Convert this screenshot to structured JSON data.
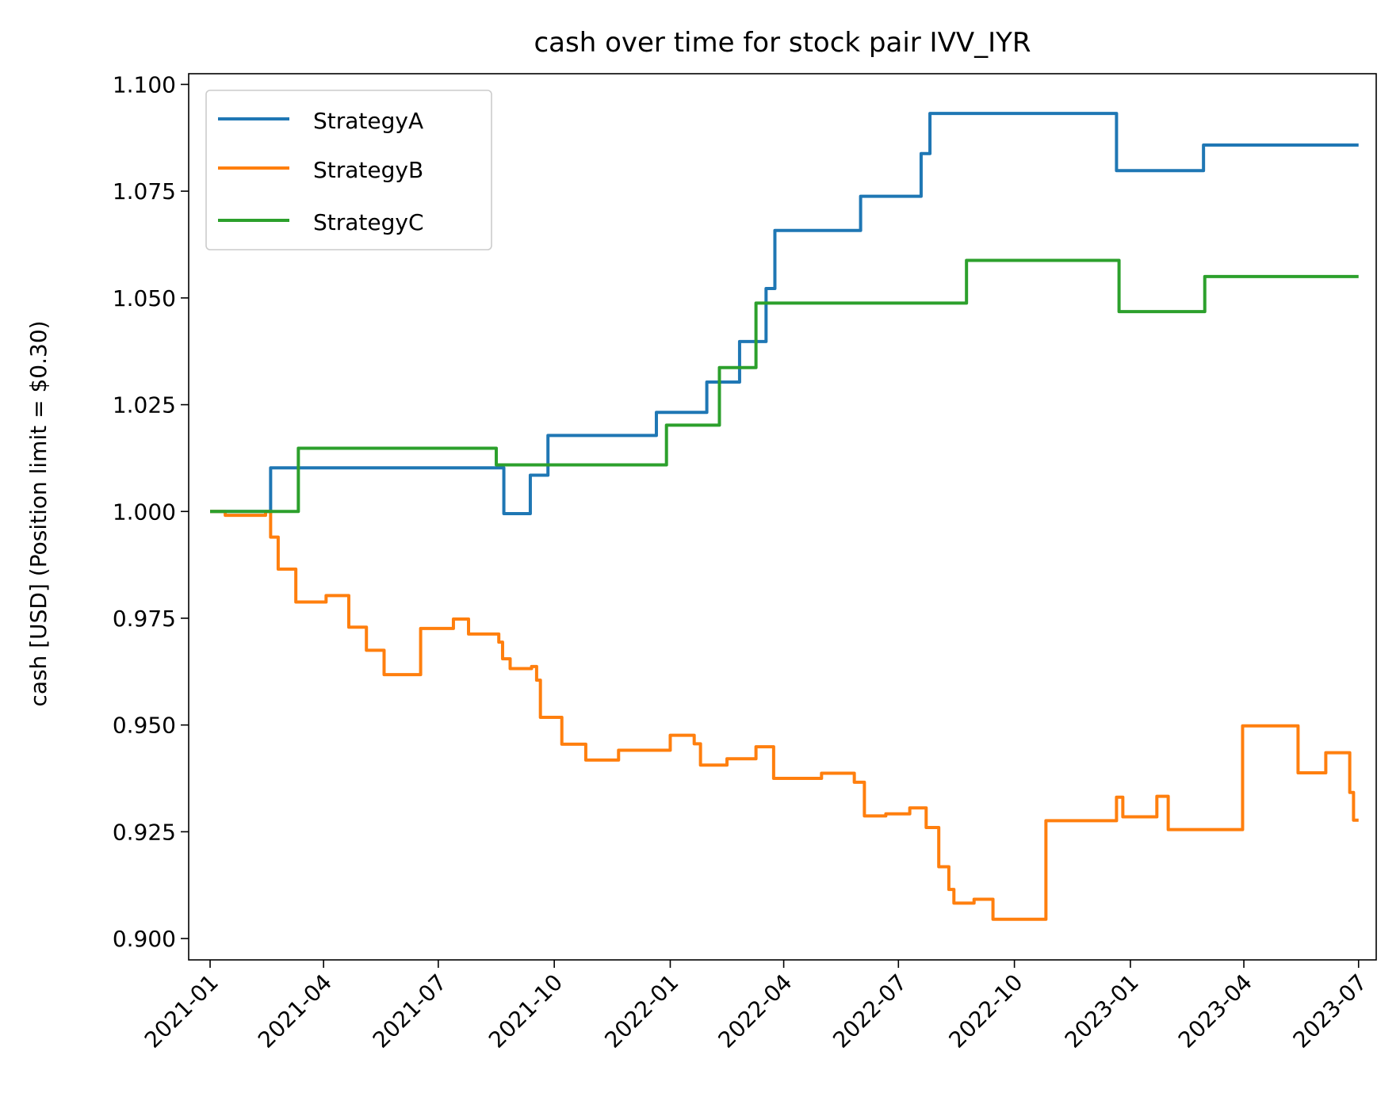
{
  "chart_data": {
    "type": "line",
    "title": "cash over time for stock pair IVV_IYR",
    "xlabel": "",
    "ylabel": "cash [USD] (Position limit = $0.30)",
    "ylim": [
      0.895,
      1.1025
    ],
    "xlim": [
      "2020-12-15",
      "2023-07-15"
    ],
    "xticks": [
      "2021-01",
      "2021-04",
      "2021-07",
      "2021-10",
      "2022-01",
      "2022-04",
      "2022-07",
      "2022-10",
      "2023-01",
      "2023-04",
      "2023-07"
    ],
    "yticks": [
      "0.900",
      "0.925",
      "0.950",
      "0.975",
      "1.000",
      "1.025",
      "1.050",
      "1.075",
      "1.100"
    ],
    "legend_position": "upper left",
    "series": [
      {
        "name": "StrategyA",
        "color": "#1f77b4",
        "points": [
          [
            "2021-01-01",
            1.0
          ],
          [
            "2021-02-18",
            1.0
          ],
          [
            "2021-02-18",
            1.0102
          ],
          [
            "2021-08-22",
            1.0102
          ],
          [
            "2021-08-22",
            0.9995
          ],
          [
            "2021-09-12",
            0.9995
          ],
          [
            "2021-09-12",
            1.0085
          ],
          [
            "2021-09-26",
            1.0085
          ],
          [
            "2021-09-26",
            1.0178
          ],
          [
            "2021-12-21",
            1.0178
          ],
          [
            "2021-12-21",
            1.0232
          ],
          [
            "2022-01-30",
            1.0232
          ],
          [
            "2022-01-30",
            1.0303
          ],
          [
            "2022-02-25",
            1.0303
          ],
          [
            "2022-02-25",
            1.0398
          ],
          [
            "2022-03-18",
            1.0398
          ],
          [
            "2022-03-18",
            1.0522
          ],
          [
            "2022-03-25",
            1.0522
          ],
          [
            "2022-03-25",
            1.0658
          ],
          [
            "2022-06-01",
            1.0658
          ],
          [
            "2022-06-01",
            1.0738
          ],
          [
            "2022-07-19",
            1.0738
          ],
          [
            "2022-07-19",
            1.0838
          ],
          [
            "2022-07-26",
            1.0838
          ],
          [
            "2022-07-26",
            1.0932
          ],
          [
            "2022-12-21",
            1.0932
          ],
          [
            "2022-12-21",
            1.0798
          ],
          [
            "2023-02-28",
            1.0798
          ],
          [
            "2023-02-28",
            1.0858
          ],
          [
            "2023-07-01",
            1.0858
          ]
        ]
      },
      {
        "name": "StrategyB",
        "color": "#ff7f0e",
        "points": [
          [
            "2021-01-01",
            1.0
          ],
          [
            "2021-01-13",
            1.0
          ],
          [
            "2021-01-13",
            0.9991
          ],
          [
            "2021-02-14",
            0.9991
          ],
          [
            "2021-02-14",
            1.0
          ],
          [
            "2021-02-18",
            1.0
          ],
          [
            "2021-02-18",
            0.994
          ],
          [
            "2021-02-24",
            0.994
          ],
          [
            "2021-02-24",
            0.9865
          ],
          [
            "2021-03-10",
            0.9865
          ],
          [
            "2021-03-10",
            0.9788
          ],
          [
            "2021-04-03",
            0.9788
          ],
          [
            "2021-04-03",
            0.9803
          ],
          [
            "2021-04-21",
            0.9803
          ],
          [
            "2021-04-21",
            0.9729
          ],
          [
            "2021-05-05",
            0.9729
          ],
          [
            "2021-05-05",
            0.9675
          ],
          [
            "2021-05-19",
            0.9675
          ],
          [
            "2021-05-19",
            0.9618
          ],
          [
            "2021-06-17",
            0.9618
          ],
          [
            "2021-06-17",
            0.9726
          ],
          [
            "2021-07-13",
            0.9726
          ],
          [
            "2021-07-13",
            0.9748
          ],
          [
            "2021-07-25",
            0.9748
          ],
          [
            "2021-07-25",
            0.9713
          ],
          [
            "2021-08-18",
            0.9713
          ],
          [
            "2021-08-18",
            0.9694
          ],
          [
            "2021-08-21",
            0.9694
          ],
          [
            "2021-08-21",
            0.9655
          ],
          [
            "2021-08-27",
            0.9655
          ],
          [
            "2021-08-27",
            0.9632
          ],
          [
            "2021-09-13",
            0.9632
          ],
          [
            "2021-09-13",
            0.9637
          ],
          [
            "2021-09-17",
            0.9637
          ],
          [
            "2021-09-17",
            0.9605
          ],
          [
            "2021-09-20",
            0.9605
          ],
          [
            "2021-09-20",
            0.9518
          ],
          [
            "2021-10-07",
            0.9518
          ],
          [
            "2021-10-07",
            0.9455
          ],
          [
            "2021-10-26",
            0.9455
          ],
          [
            "2021-10-26",
            0.9418
          ],
          [
            "2021-11-21",
            0.9418
          ],
          [
            "2021-11-21",
            0.9441
          ],
          [
            "2022-01-01",
            0.9441
          ],
          [
            "2022-01-01",
            0.9476
          ],
          [
            "2022-01-20",
            0.9476
          ],
          [
            "2022-01-20",
            0.9456
          ],
          [
            "2022-01-25",
            0.9456
          ],
          [
            "2022-01-25",
            0.9406
          ],
          [
            "2022-02-15",
            0.9406
          ],
          [
            "2022-02-15",
            0.9421
          ],
          [
            "2022-03-10",
            0.9421
          ],
          [
            "2022-03-10",
            0.9449
          ],
          [
            "2022-03-24",
            0.9449
          ],
          [
            "2022-03-24",
            0.9375
          ],
          [
            "2022-05-01",
            0.9375
          ],
          [
            "2022-05-01",
            0.9387
          ],
          [
            "2022-05-27",
            0.9387
          ],
          [
            "2022-05-27",
            0.9366
          ],
          [
            "2022-06-04",
            0.9366
          ],
          [
            "2022-06-04",
            0.9287
          ],
          [
            "2022-06-21",
            0.9287
          ],
          [
            "2022-06-21",
            0.9292
          ],
          [
            "2022-07-10",
            0.9292
          ],
          [
            "2022-07-10",
            0.9306
          ],
          [
            "2022-07-23",
            0.9306
          ],
          [
            "2022-07-23",
            0.926
          ],
          [
            "2022-08-02",
            0.926
          ],
          [
            "2022-08-02",
            0.9168
          ],
          [
            "2022-08-10",
            0.9168
          ],
          [
            "2022-08-10",
            0.9115
          ],
          [
            "2022-08-14",
            0.9115
          ],
          [
            "2022-08-14",
            0.9083
          ],
          [
            "2022-08-30",
            0.9083
          ],
          [
            "2022-08-30",
            0.9092
          ],
          [
            "2022-09-14",
            0.9092
          ],
          [
            "2022-09-14",
            0.9045
          ],
          [
            "2022-10-26",
            0.9045
          ],
          [
            "2022-10-26",
            0.9276
          ],
          [
            "2022-12-21",
            0.9276
          ],
          [
            "2022-12-21",
            0.9331
          ],
          [
            "2022-12-26",
            0.9331
          ],
          [
            "2022-12-26",
            0.9285
          ],
          [
            "2023-01-22",
            0.9285
          ],
          [
            "2023-01-22",
            0.9333
          ],
          [
            "2023-01-31",
            0.9333
          ],
          [
            "2023-01-31",
            0.9255
          ],
          [
            "2023-03-31",
            0.9255
          ],
          [
            "2023-03-31",
            0.9498
          ],
          [
            "2023-05-14",
            0.9498
          ],
          [
            "2023-05-14",
            0.9388
          ],
          [
            "2023-06-05",
            0.9388
          ],
          [
            "2023-06-05",
            0.9435
          ],
          [
            "2023-06-24",
            0.9435
          ],
          [
            "2023-06-24",
            0.9342
          ],
          [
            "2023-06-27",
            0.9342
          ],
          [
            "2023-06-27",
            0.9277
          ],
          [
            "2023-07-01",
            0.9277
          ]
        ]
      },
      {
        "name": "StrategyC",
        "color": "#2ca02c",
        "points": [
          [
            "2021-01-01",
            1.0
          ],
          [
            "2021-03-12",
            1.0
          ],
          [
            "2021-03-12",
            1.0148
          ],
          [
            "2021-08-16",
            1.0148
          ],
          [
            "2021-08-16",
            1.0109
          ],
          [
            "2021-12-29",
            1.0109
          ],
          [
            "2021-12-29",
            1.0202
          ],
          [
            "2022-02-09",
            1.0202
          ],
          [
            "2022-02-09",
            1.0337
          ],
          [
            "2022-03-10",
            1.0337
          ],
          [
            "2022-03-10",
            1.0488
          ],
          [
            "2022-08-24",
            1.0488
          ],
          [
            "2022-08-24",
            1.0588
          ],
          [
            "2022-12-23",
            1.0588
          ],
          [
            "2022-12-23",
            1.0468
          ],
          [
            "2023-03-01",
            1.0468
          ],
          [
            "2023-03-01",
            1.055
          ],
          [
            "2023-07-01",
            1.055
          ]
        ]
      }
    ]
  }
}
